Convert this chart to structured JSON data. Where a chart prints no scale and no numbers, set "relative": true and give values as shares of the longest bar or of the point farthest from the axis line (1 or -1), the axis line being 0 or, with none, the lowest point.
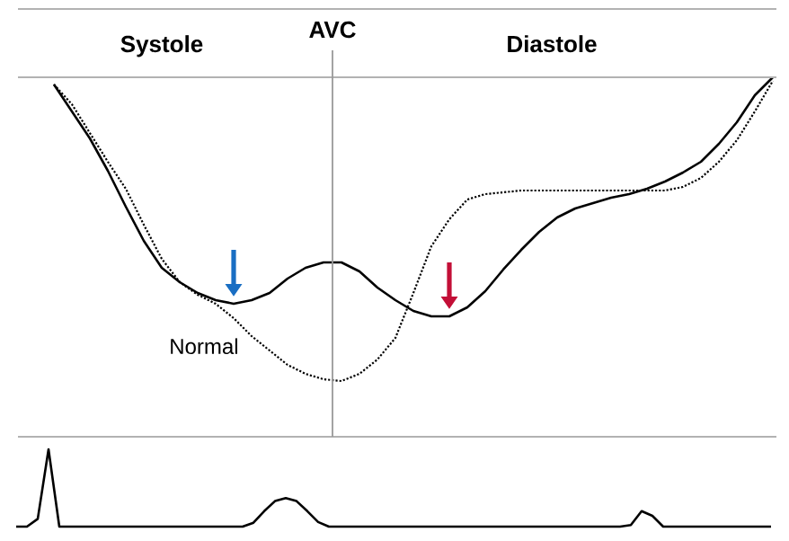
{
  "chart_data": [
    {
      "type": "line",
      "relative": true,
      "categories": [
        null,
        null,
        null,
        null,
        null,
        null,
        null,
        null,
        null,
        null,
        null,
        null,
        null,
        null,
        null,
        null,
        null,
        null,
        null,
        null,
        null,
        null,
        null,
        null,
        null,
        null,
        null,
        null,
        null,
        null,
        null,
        null,
        null,
        null,
        null,
        null,
        null,
        null,
        null,
        null,
        null
      ],
      "series": [
        {
          "color": "#000000",
          "line_style": "solid",
          "values": [
            0.98,
            0.905,
            0.83,
            0.74,
            0.64,
            0.545,
            0.47,
            0.43,
            0.4,
            0.38,
            0.37,
            0.38,
            0.4,
            0.44,
            0.47,
            0.485,
            0.485,
            0.46,
            0.415,
            0.38,
            0.35,
            0.335,
            0.335,
            0.36,
            0.405,
            0.465,
            0.52,
            0.57,
            0.61,
            0.635,
            0.65,
            0.665,
            0.675,
            0.69,
            0.71,
            0.735,
            0.765,
            0.815,
            0.875,
            0.95,
            1.0
          ]
        },
        {
          "name": "Normal",
          "color": "#000000",
          "line_style": "dotted",
          "values": [
            0.98,
            0.925,
            0.845,
            0.765,
            0.69,
            0.59,
            0.495,
            0.43,
            0.395,
            0.37,
            0.33,
            0.28,
            0.24,
            0.2,
            0.175,
            0.16,
            0.155,
            0.175,
            0.215,
            0.275,
            0.4,
            0.53,
            0.605,
            0.66,
            0.675,
            0.68,
            0.685,
            0.685,
            0.685,
            0.685,
            0.685,
            0.685,
            0.685,
            0.685,
            0.685,
            0.695,
            0.72,
            0.765,
            0.825,
            0.905,
            0.99
          ]
        }
      ],
      "annotations": [
        "Systole",
        "AVC",
        "Diastole"
      ]
    },
    {
      "type": "line",
      "relative": true,
      "categories": [
        null,
        null,
        null,
        null,
        null,
        null,
        null,
        null,
        null,
        null,
        null,
        null,
        null,
        null,
        null,
        null,
        null,
        null,
        null,
        null,
        null,
        null,
        null,
        null,
        null,
        null,
        null,
        null,
        null,
        null,
        null,
        null,
        null,
        null,
        null,
        null,
        null,
        null,
        null,
        null,
        null,
        null,
        null,
        null,
        null,
        null,
        null,
        null,
        null,
        null,
        null,
        null,
        null,
        null,
        null,
        null,
        null,
        null,
        null,
        null,
        null,
        null,
        null,
        null,
        null,
        null,
        null,
        null,
        null,
        null,
        null
      ],
      "series": [
        {
          "color": "#000000",
          "line_style": "solid",
          "values": [
            0,
            0,
            0.1,
            1,
            0,
            0,
            0,
            0,
            0,
            0,
            0,
            0,
            0,
            0,
            0,
            0,
            0,
            0,
            0,
            0,
            0,
            0,
            0.05,
            0.2,
            0.33,
            0.37,
            0.33,
            0.2,
            0.06,
            0,
            0,
            0,
            0,
            0,
            0,
            0,
            0,
            0,
            0,
            0,
            0,
            0,
            0,
            0,
            0,
            0,
            0,
            0,
            0,
            0,
            0,
            0,
            0,
            0,
            0,
            0,
            0,
            0.02,
            0.2,
            0.14,
            0,
            0,
            0,
            0,
            0,
            0,
            0,
            0,
            0,
            0,
            0
          ]
        }
      ]
    }
  ]
}
